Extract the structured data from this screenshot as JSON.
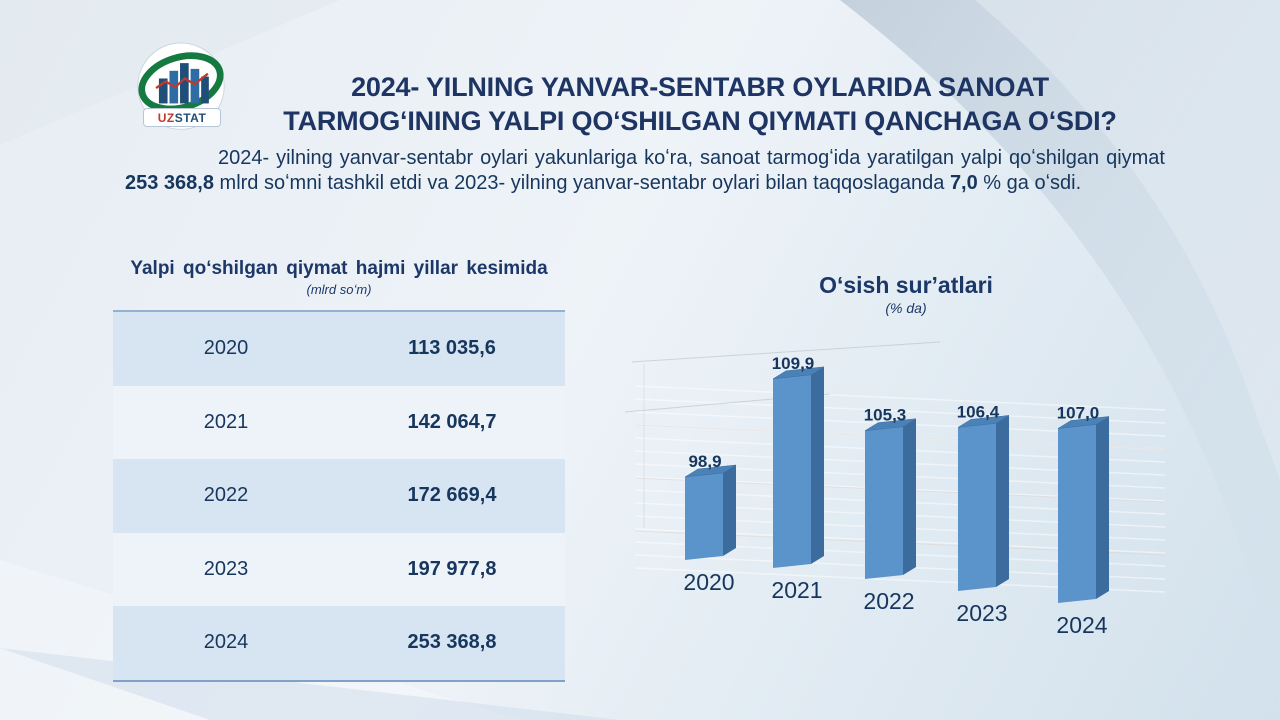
{
  "header": {
    "title_line1": "2024- YILNING YANVAR-SENTABR OYLARIDA SANOAT",
    "title_line2": "TARMOGʻINING YALPI QOʻSHILGAN QIYMATI QANCHAGA OʻSDI?"
  },
  "logo": {
    "uz": "UZ",
    "stat": "STAT"
  },
  "intro": {
    "parts": [
      {
        "text": "2024- yilning yanvar-sentabr oylari yakunlariga koʻra, sanoat tarmogʻida yaratilgan yalpi qoʻshilgan qiymat ",
        "bold": false
      },
      {
        "text": "253 368,8",
        "bold": true
      },
      {
        "text": " mlrd soʻmni tashkil etdi va 2023- yilning yanvar-sentabr oylari bilan taqqoslaganda ",
        "bold": false
      },
      {
        "text": "7,0",
        "bold": true
      },
      {
        "text": " % ga oʻsdi.",
        "bold": false
      }
    ]
  },
  "table": {
    "title": "Yalpi qoʻshilgan qiymat hajmi yillar kesimida",
    "subtitle": "(mlrd soʻm)",
    "rows": [
      {
        "year": "2020",
        "value": "113 035,6"
      },
      {
        "year": "2021",
        "value": "142 064,7"
      },
      {
        "year": "2022",
        "value": "172 669,4"
      },
      {
        "year": "2023",
        "value": "197 977,8"
      },
      {
        "year": "2024",
        "value": "253 368,8"
      }
    ]
  },
  "chart_data": {
    "type": "bar",
    "style": "3d-column",
    "title": "Oʻsish surʼatlari",
    "subtitle": "(% da)",
    "categories": [
      "2020",
      "2021",
      "2022",
      "2023",
      "2024"
    ],
    "values": [
      98.9,
      109.9,
      105.3,
      106.4,
      107.0
    ],
    "value_labels": [
      "98,9",
      "109,9",
      "105,3",
      "106,4",
      "107,0"
    ],
    "xlabel": "",
    "ylabel": "",
    "legend": false,
    "gridlines": true,
    "colors": {
      "bar_front": "#5b94cb",
      "bar_side": "#3c6b9d",
      "bar_top": "#4a82b8",
      "label": "#17365d"
    }
  },
  "colors": {
    "navy_text": "#17365d",
    "title_navy": "#1e3563",
    "table_row_blue": "#d7e5f3",
    "table_row_light": "#edf3f9",
    "logo_green": "#157a40",
    "logo_red": "#c0392b",
    "logo_bar_blue": "#1f4e79"
  }
}
